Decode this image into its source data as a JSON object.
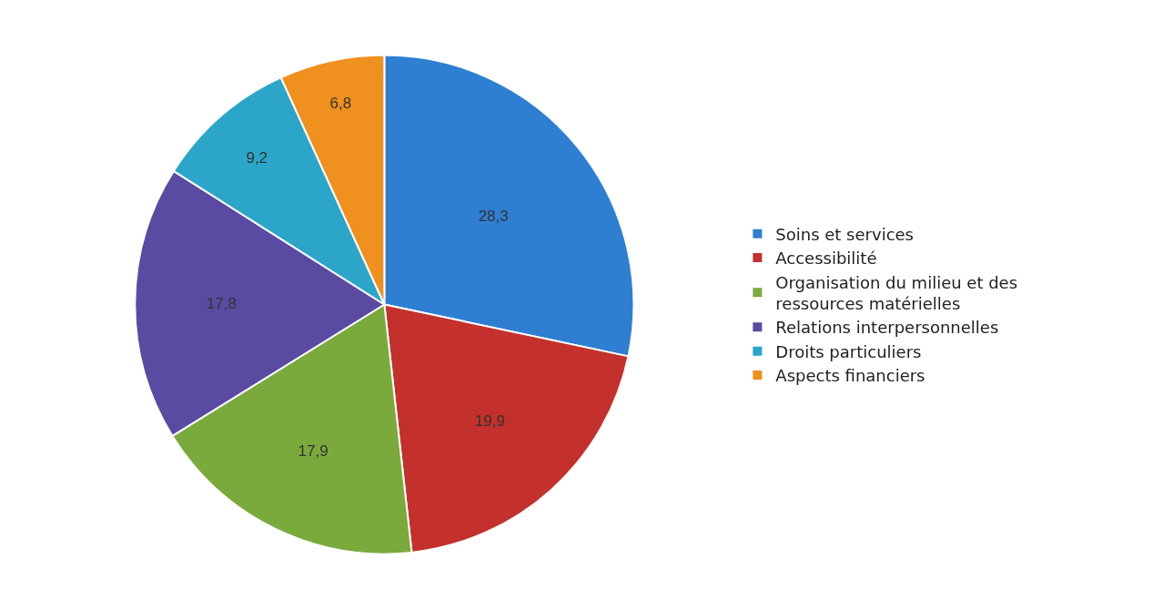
{
  "chart_data": {
    "type": "pie",
    "categories": [
      "Soins et services",
      "Accessibilité",
      "Organisation du milieu et des ressources matérielles",
      "Relations interpersonnelles",
      "Droits particuliers",
      "Aspects financiers"
    ],
    "values": [
      28.3,
      19.9,
      17.9,
      17.8,
      9.2,
      6.8
    ],
    "value_labels": [
      "28,3",
      "19,9",
      "17,9",
      "17,8",
      "9,2",
      "6,8"
    ],
    "colors": [
      "#2e7fd2",
      "#c4302c",
      "#7aaa3c",
      "#5b4aa2",
      "#2ba6c9",
      "#f0901e"
    ],
    "legend": "right"
  }
}
